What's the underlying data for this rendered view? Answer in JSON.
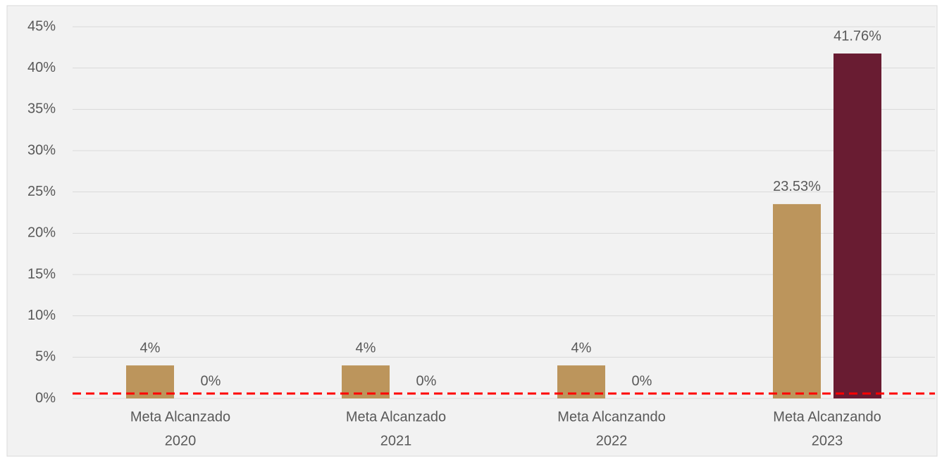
{
  "chart_data": {
    "type": "bar",
    "categories": [
      [
        "Meta  Alcanzado",
        "2020"
      ],
      [
        "Meta  Alcanzado",
        "2021"
      ],
      [
        "Meta Alcanzando",
        "2022"
      ],
      [
        "Meta Alcanzando",
        "2023"
      ]
    ],
    "series": [
      {
        "color": "#bc955c",
        "values": [
          4,
          4,
          4,
          23.53
        ],
        "value_labels": [
          "4%",
          "4%",
          "4%",
          "23.53%"
        ]
      },
      {
        "color": "#691c32",
        "values": [
          0,
          0,
          0,
          41.76
        ],
        "value_labels": [
          "0%",
          "0%",
          "0%",
          "41.76%"
        ]
      }
    ],
    "ylim": [
      0,
      45
    ],
    "yticks": [
      {
        "value": 0,
        "label": "0%"
      },
      {
        "value": 5,
        "label": "5%"
      },
      {
        "value": 10,
        "label": "10%"
      },
      {
        "value": 15,
        "label": "15%"
      },
      {
        "value": 20,
        "label": "20%"
      },
      {
        "value": 25,
        "label": "25%"
      },
      {
        "value": 30,
        "label": "30%"
      },
      {
        "value": 35,
        "label": "35%"
      },
      {
        "value": 40,
        "label": "40%"
      },
      {
        "value": 45,
        "label": "45%"
      }
    ],
    "grid": true,
    "reference_line": {
      "value": 0.6,
      "color": "#ff0000"
    }
  }
}
